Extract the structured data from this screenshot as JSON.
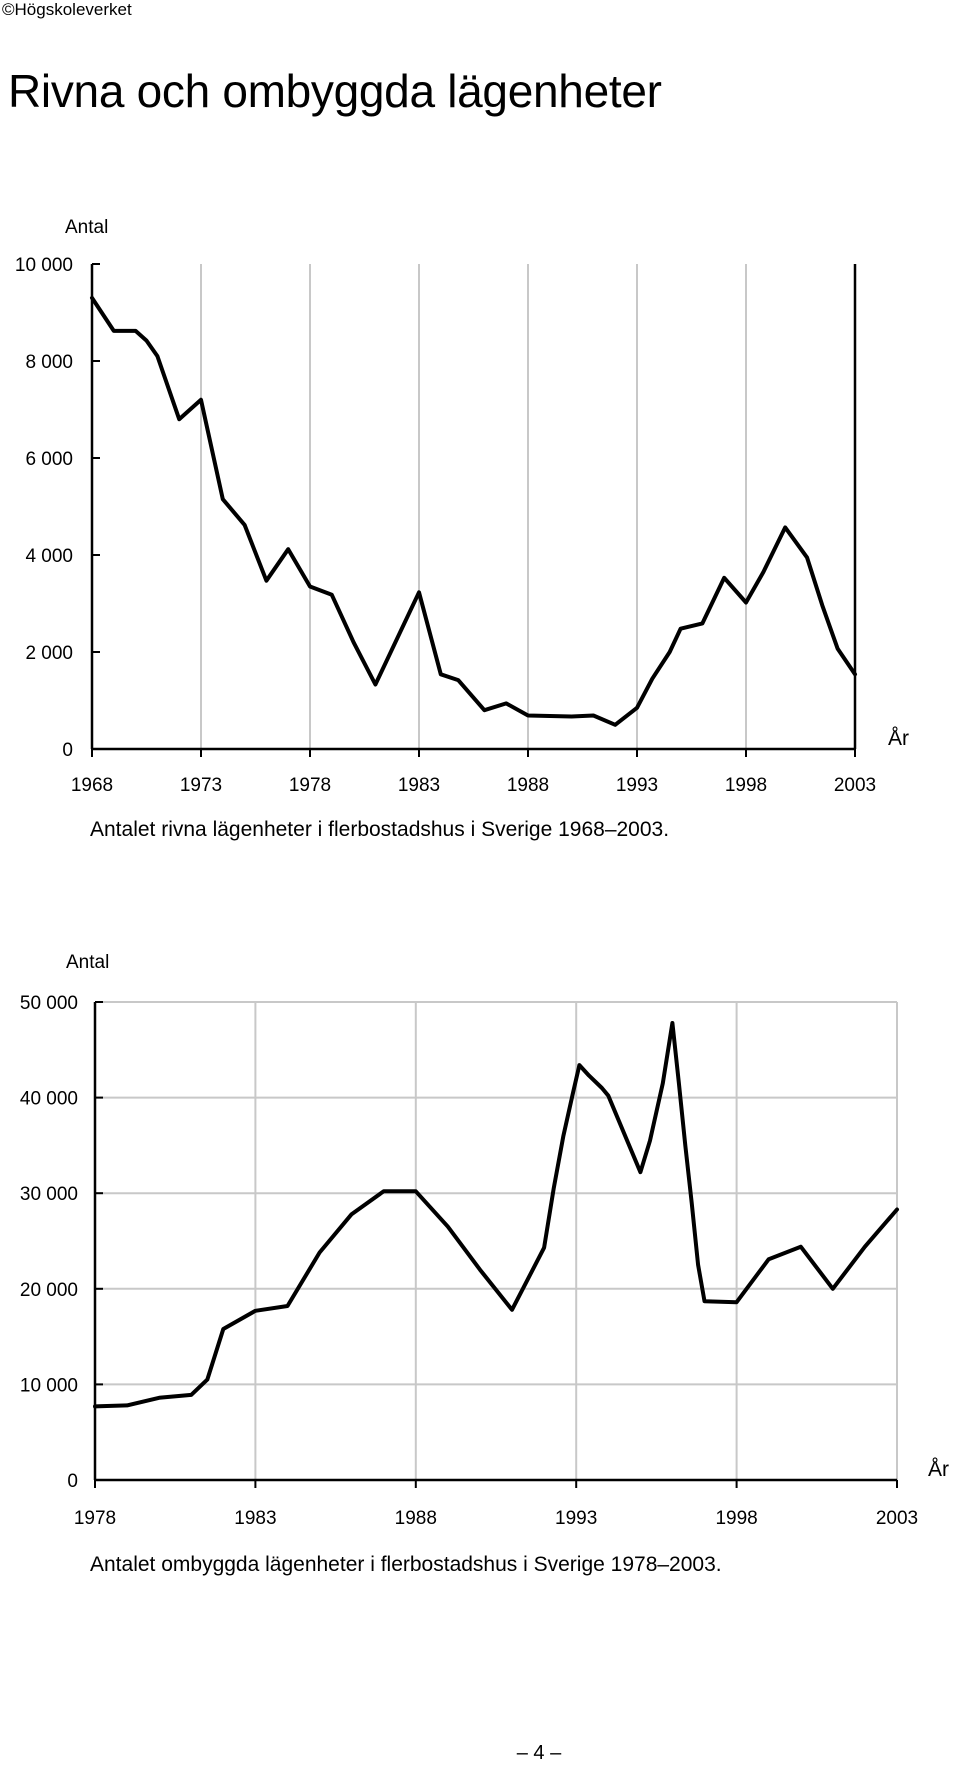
{
  "header": {
    "copyright": "©Högskoleverket",
    "title": "Rivna och ombyggda lägenheter"
  },
  "footer": {
    "page_number": "– 4 –"
  },
  "chart_data": [
    {
      "type": "line",
      "title": "",
      "caption": "Antalet rivna lägenheter i flerbostadshus i Sverige 1968–2003.",
      "ylabel": "Antal",
      "xlabel": "År",
      "xlim": [
        1968,
        2003
      ],
      "ylim": [
        0,
        10000
      ],
      "x_ticks": [
        1968,
        1973,
        1978,
        1983,
        1988,
        1993,
        1998,
        2003
      ],
      "x_tick_labels": [
        "1968",
        "1973",
        "1978",
        "1983",
        "1988",
        "1993",
        "1998",
        "2003"
      ],
      "y_ticks": [
        0,
        2000,
        4000,
        6000,
        8000,
        10000
      ],
      "y_tick_labels": [
        "0",
        "2 000",
        "4 000",
        "6 000",
        "8 000",
        "10 000"
      ],
      "grid": "vertical",
      "line_color": "#000000",
      "grid_color": "#c8c8c8",
      "series": [
        {
          "x": [
            1968,
            1969,
            1970,
            1970.5,
            1971,
            1972,
            1973,
            1974,
            1975,
            1976,
            1977,
            1978,
            1979,
            1980,
            1981,
            1983,
            1984,
            1984.8,
            1986,
            1987,
            1988,
            1990,
            1991,
            1992,
            1993,
            1993.7,
            1994.5,
            1995,
            1996,
            1997,
            1998,
            1998.8,
            1999.8,
            2000.8,
            2001.5,
            2002.2,
            2003
          ],
          "y": [
            9300,
            8620,
            8620,
            8420,
            8100,
            6800,
            7200,
            5150,
            4620,
            3470,
            4120,
            3350,
            3180,
            2200,
            1330,
            3230,
            1540,
            1420,
            800,
            940,
            690,
            670,
            690,
            500,
            850,
            1450,
            2000,
            2480,
            2590,
            3530,
            3020,
            3650,
            4570,
            3950,
            2960,
            2070,
            1540
          ]
        }
      ]
    },
    {
      "type": "line",
      "title": "",
      "caption": "Antalet ombyggda lägenheter i flerbostadshus i Sverige 1978–2003.",
      "ylabel": "Antal",
      "xlabel": "År",
      "xlim": [
        1978,
        2003
      ],
      "ylim": [
        0,
        50000
      ],
      "x_ticks": [
        1978,
        1983,
        1988,
        1993,
        1998,
        2003
      ],
      "x_tick_labels": [
        "1978",
        "1983",
        "1988",
        "1993",
        "1998",
        "2003"
      ],
      "y_ticks": [
        0,
        10000,
        20000,
        30000,
        40000,
        50000
      ],
      "y_tick_labels": [
        "0",
        "10 000",
        "20 000",
        "30 000",
        "40 000",
        "50 000"
      ],
      "grid": "both",
      "line_color": "#000000",
      "grid_color": "#c8c8c8",
      "series": [
        {
          "x": [
            1978,
            1979,
            1980,
            1981,
            1981.5,
            1982,
            1983,
            1984,
            1985,
            1986,
            1987,
            1988,
            1989,
            1990,
            1991,
            1992,
            1992.3,
            1992.6,
            1992.9,
            1993.1,
            1993.4,
            1993.8,
            1994,
            1995,
            1995.3,
            1995.7,
            1996,
            1996.2,
            1996.4,
            1996.6,
            1996.8,
            1997,
            1998,
            1999,
            2000,
            2001,
            2002,
            2003
          ],
          "y": [
            7700,
            7800,
            8600,
            8900,
            10500,
            15800,
            17700,
            18200,
            23800,
            27800,
            30200,
            30200,
            26500,
            22000,
            17800,
            24300,
            30500,
            36000,
            40500,
            43400,
            42300,
            41000,
            40200,
            32200,
            35500,
            41500,
            47800,
            41500,
            35000,
            29000,
            22500,
            18700,
            18600,
            23100,
            24400,
            20000,
            24400,
            28300
          ]
        }
      ]
    }
  ]
}
